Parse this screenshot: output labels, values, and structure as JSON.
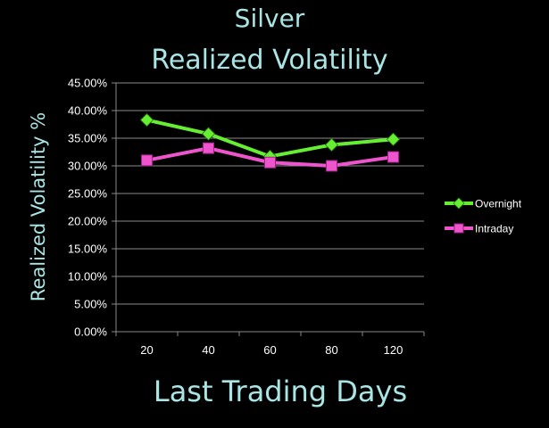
{
  "chart_data": {
    "type": "line",
    "title": "Silver",
    "subtitle": "Realized Volatility",
    "xlabel": "Last Trading Days",
    "ylabel": "Realized Volatility %",
    "categories": [
      "20",
      "40",
      "60",
      "80",
      "120"
    ],
    "y_ticks": [
      "0.00%",
      "5.00%",
      "10.00%",
      "15.00%",
      "20.00%",
      "25.00%",
      "30.00%",
      "35.00%",
      "40.00%",
      "45.00%"
    ],
    "ylim": [
      0,
      45
    ],
    "grid": true,
    "legend_position": "right",
    "series": [
      {
        "name": "Overnight",
        "values": [
          38.3,
          35.8,
          31.7,
          33.8,
          34.8
        ],
        "color": "#66ee33",
        "marker": "diamond"
      },
      {
        "name": "Intraday",
        "values": [
          31.0,
          33.2,
          30.6,
          30.0,
          31.6
        ],
        "color": "#ee55cc",
        "marker": "square"
      }
    ]
  }
}
